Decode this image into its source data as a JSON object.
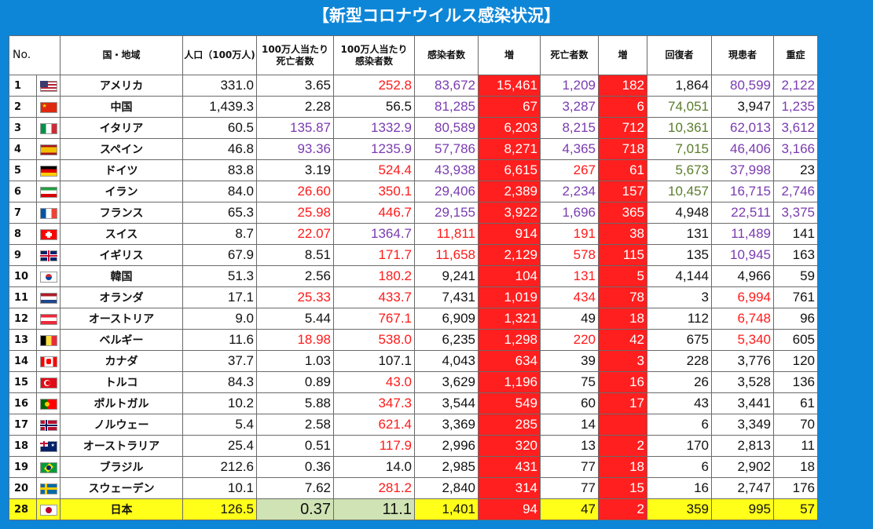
{
  "title": "【新型コロナウイルス感染状況】",
  "headers": {
    "no": "No.",
    "country": "国・地域",
    "population": "人口（100万人)",
    "deaths_per_million": "100万人当たり死亡者数",
    "cases_per_million": "100万人当たり感染者数",
    "cases": "感染者数",
    "cases_increase": "増",
    "deaths": "死亡者数",
    "deaths_increase": "増",
    "recovered": "回復者",
    "active": "現患者",
    "serious": "重症"
  },
  "colors": {
    "red": "#ff1a1a",
    "purple": "#7a3bb0",
    "green": "#5a7d2a",
    "increase_bg": "#ff1f1f",
    "japan_bg": "#ffff1a"
  },
  "rows": [
    {
      "no": "1",
      "flag": "flag-us",
      "name": "アメリカ",
      "pop": "331.0",
      "dpm": "3.65",
      "cpm": "252.8",
      "cases": "83,672",
      "inc": "15,461",
      "deaths": "1,209",
      "dinc": "182",
      "rec": "1,864",
      "active": "80,599",
      "serious": "2,122",
      "c": {
        "cpm": "red",
        "cases": "purple",
        "deaths": "purple",
        "active": "purple",
        "serious": "purple"
      }
    },
    {
      "no": "2",
      "flag": "flag-cn",
      "name": "中国",
      "pop": "1,439.3",
      "dpm": "2.28",
      "cpm": "56.5",
      "cases": "81,285",
      "inc": "67",
      "deaths": "3,287",
      "dinc": "6",
      "rec": "74,051",
      "active": "3,947",
      "serious": "1,235",
      "c": {
        "cases": "purple",
        "deaths": "purple",
        "rec": "green",
        "serious": "purple"
      }
    },
    {
      "no": "3",
      "flag": "flag-it",
      "name": "イタリア",
      "pop": "60.5",
      "dpm": "135.87",
      "cpm": "1332.9",
      "cases": "80,589",
      "inc": "6,203",
      "deaths": "8,215",
      "dinc": "712",
      "rec": "10,361",
      "active": "62,013",
      "serious": "3,612",
      "c": {
        "dpm": "purple",
        "cpm": "purple",
        "cases": "purple",
        "deaths": "purple",
        "rec": "green",
        "active": "purple",
        "serious": "purple"
      }
    },
    {
      "no": "4",
      "flag": "flag-es",
      "name": "スペイン",
      "pop": "46.8",
      "dpm": "93.36",
      "cpm": "1235.9",
      "cases": "57,786",
      "inc": "8,271",
      "deaths": "4,365",
      "dinc": "718",
      "rec": "7,015",
      "active": "46,406",
      "serious": "3,166",
      "c": {
        "dpm": "purple",
        "cpm": "purple",
        "cases": "purple",
        "deaths": "purple",
        "rec": "green",
        "active": "purple",
        "serious": "purple"
      }
    },
    {
      "no": "5",
      "flag": "flag-de",
      "name": "ドイツ",
      "pop": "83.8",
      "dpm": "3.19",
      "cpm": "524.4",
      "cases": "43,938",
      "inc": "6,615",
      "deaths": "267",
      "dinc": "61",
      "rec": "5,673",
      "active": "37,998",
      "serious": "23",
      "c": {
        "cpm": "red",
        "cases": "purple",
        "deaths": "red",
        "rec": "green",
        "active": "purple"
      }
    },
    {
      "no": "6",
      "flag": "flag-ir",
      "name": "イラン",
      "pop": "84.0",
      "dpm": "26.60",
      "cpm": "350.1",
      "cases": "29,406",
      "inc": "2,389",
      "deaths": "2,234",
      "dinc": "157",
      "rec": "10,457",
      "active": "16,715",
      "serious": "2,746",
      "c": {
        "dpm": "red",
        "cpm": "red",
        "cases": "purple",
        "deaths": "purple",
        "rec": "green",
        "active": "purple",
        "serious": "purple"
      }
    },
    {
      "no": "7",
      "flag": "flag-fr",
      "name": "フランス",
      "pop": "65.3",
      "dpm": "25.98",
      "cpm": "446.7",
      "cases": "29,155",
      "inc": "3,922",
      "deaths": "1,696",
      "dinc": "365",
      "rec": "4,948",
      "active": "22,511",
      "serious": "3,375",
      "c": {
        "dpm": "red",
        "cpm": "red",
        "cases": "purple",
        "deaths": "purple",
        "active": "purple",
        "serious": "purple"
      }
    },
    {
      "no": "8",
      "flag": "flag-ch",
      "name": "スイス",
      "pop": "8.7",
      "dpm": "22.07",
      "cpm": "1364.7",
      "cases": "11,811",
      "inc": "914",
      "deaths": "191",
      "dinc": "38",
      "rec": "131",
      "active": "11,489",
      "serious": "141",
      "c": {
        "dpm": "red",
        "cpm": "purple",
        "cases": "red",
        "deaths": "red",
        "active": "purple"
      }
    },
    {
      "no": "9",
      "flag": "flag-gb",
      "name": "イギリス",
      "pop": "67.9",
      "dpm": "8.51",
      "cpm": "171.7",
      "cases": "11,658",
      "inc": "2,129",
      "deaths": "578",
      "dinc": "115",
      "rec": "135",
      "active": "10,945",
      "serious": "163",
      "c": {
        "cpm": "red",
        "cases": "red",
        "deaths": "red",
        "active": "purple"
      }
    },
    {
      "no": "10",
      "flag": "flag-kr",
      "name": "韓国",
      "pop": "51.3",
      "dpm": "2.56",
      "cpm": "180.2",
      "cases": "9,241",
      "inc": "104",
      "deaths": "131",
      "dinc": "5",
      "rec": "4,144",
      "active": "4,966",
      "serious": "59",
      "c": {
        "cpm": "red",
        "deaths": "red"
      }
    },
    {
      "no": "11",
      "flag": "flag-nl",
      "name": "オランダ",
      "pop": "17.1",
      "dpm": "25.33",
      "cpm": "433.7",
      "cases": "7,431",
      "inc": "1,019",
      "deaths": "434",
      "dinc": "78",
      "rec": "3",
      "active": "6,994",
      "serious": "761",
      "c": {
        "dpm": "red",
        "cpm": "red",
        "deaths": "red",
        "active": "red"
      }
    },
    {
      "no": "12",
      "flag": "flag-at",
      "name": "オーストリア",
      "pop": "9.0",
      "dpm": "5.44",
      "cpm": "767.1",
      "cases": "6,909",
      "inc": "1,321",
      "deaths": "49",
      "dinc": "18",
      "rec": "112",
      "active": "6,748",
      "serious": "96",
      "c": {
        "cpm": "red",
        "active": "red"
      }
    },
    {
      "no": "13",
      "flag": "flag-be",
      "name": "ベルギー",
      "pop": "11.6",
      "dpm": "18.98",
      "cpm": "538.0",
      "cases": "6,235",
      "inc": "1,298",
      "deaths": "220",
      "dinc": "42",
      "rec": "675",
      "active": "5,340",
      "serious": "605",
      "c": {
        "dpm": "red",
        "cpm": "red",
        "deaths": "red",
        "active": "red"
      }
    },
    {
      "no": "14",
      "flag": "flag-ca",
      "name": "カナダ",
      "pop": "37.7",
      "dpm": "1.03",
      "cpm": "107.1",
      "cases": "4,043",
      "inc": "634",
      "deaths": "39",
      "dinc": "3",
      "rec": "228",
      "active": "3,776",
      "serious": "120",
      "c": {}
    },
    {
      "no": "15",
      "flag": "flag-tr",
      "name": "トルコ",
      "pop": "84.3",
      "dpm": "0.89",
      "cpm": "43.0",
      "cases": "3,629",
      "inc": "1,196",
      "deaths": "75",
      "dinc": "16",
      "rec": "26",
      "active": "3,528",
      "serious": "136",
      "c": {
        "cpm": "red"
      }
    },
    {
      "no": "16",
      "flag": "flag-pt",
      "name": "ポルトガル",
      "pop": "10.2",
      "dpm": "5.88",
      "cpm": "347.3",
      "cases": "3,544",
      "inc": "549",
      "deaths": "60",
      "dinc": "17",
      "rec": "43",
      "active": "3,441",
      "serious": "61",
      "c": {
        "cpm": "red"
      }
    },
    {
      "no": "17",
      "flag": "flag-no",
      "name": "ノルウェー",
      "pop": "5.4",
      "dpm": "2.58",
      "cpm": "621.4",
      "cases": "3,369",
      "inc": "285",
      "deaths": "14",
      "dinc": "",
      "rec": "6",
      "active": "3,349",
      "serious": "70",
      "c": {
        "cpm": "red"
      }
    },
    {
      "no": "18",
      "flag": "flag-au",
      "name": "オーストラリア",
      "pop": "25.4",
      "dpm": "0.51",
      "cpm": "117.9",
      "cases": "2,996",
      "inc": "320",
      "deaths": "13",
      "dinc": "2",
      "rec": "170",
      "active": "2,813",
      "serious": "11",
      "c": {
        "cpm": "red"
      }
    },
    {
      "no": "19",
      "flag": "flag-br",
      "name": "ブラジル",
      "pop": "212.6",
      "dpm": "0.36",
      "cpm": "14.0",
      "cases": "2,985",
      "inc": "431",
      "deaths": "77",
      "dinc": "18",
      "rec": "6",
      "active": "2,902",
      "serious": "18",
      "c": {}
    },
    {
      "no": "20",
      "flag": "flag-se",
      "name": "スウェーデン",
      "pop": "10.1",
      "dpm": "7.62",
      "cpm": "281.2",
      "cases": "2,840",
      "inc": "314",
      "deaths": "77",
      "dinc": "15",
      "rec": "16",
      "active": "2,747",
      "serious": "176",
      "c": {
        "cpm": "red"
      }
    },
    {
      "no": "28",
      "flag": "flag-jp",
      "name": "日本",
      "pop": "126.5",
      "dpm": "0.37",
      "cpm": "11.1",
      "cases": "1,401",
      "inc": "94",
      "deaths": "47",
      "dinc": "2",
      "rec": "359",
      "active": "995",
      "serious": "57",
      "c": {},
      "japan": true
    }
  ]
}
